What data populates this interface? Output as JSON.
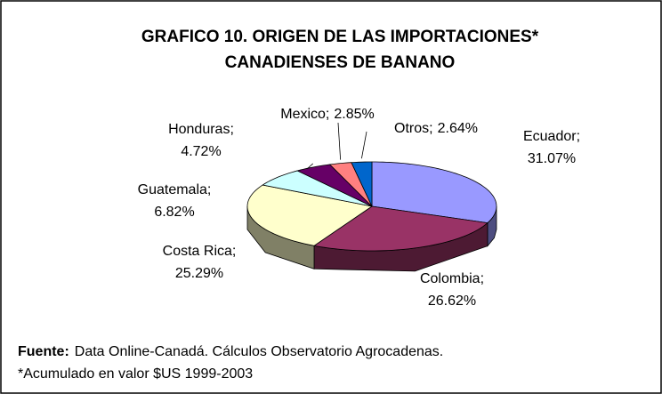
{
  "chart_data": {
    "type": "pie",
    "title_lines": [
      "GRAFICO 10. ORIGEN DE LAS IMPORTACIONES*",
      "CANADIENSES DE BANANO"
    ],
    "categories": [
      "Ecuador",
      "Colombia",
      "Costa Rica",
      "Guatemala",
      "Honduras",
      "Mexico",
      "Otros"
    ],
    "values": [
      31.07,
      26.62,
      25.29,
      6.82,
      4.72,
      2.85,
      2.64
    ],
    "value_labels": [
      "31.07%",
      "26.62%",
      "25.29%",
      "6.82%",
      "4.72%",
      "2.85%",
      "2.64%"
    ],
    "label_separator": ";",
    "colors": [
      "#9999ff",
      "#993366",
      "#ffffcc",
      "#ccffff",
      "#660066",
      "#ff8080",
      "#0066cc"
    ],
    "style": "3d"
  },
  "footer": {
    "source_label": "Fuente:",
    "source_text": "Data Online-Canadá. Cálculos Observatorio Agrocadenas.",
    "note": "*Acumulado  en valor $US 1999-2003"
  }
}
